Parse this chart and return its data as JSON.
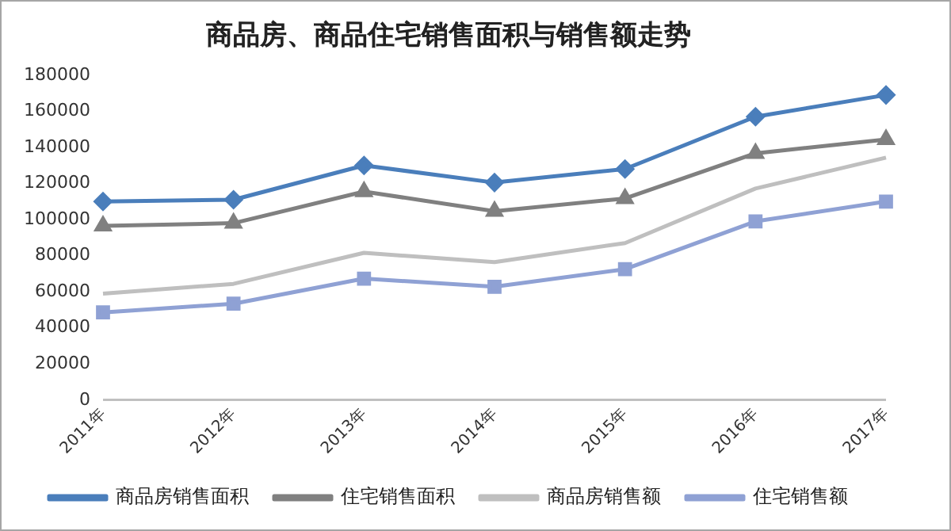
{
  "chart_data": {
    "type": "line",
    "title": "商品房、商品住宅销售面积与销售额走势",
    "categories": [
      "2011年",
      "2012年",
      "2013年",
      "2014年",
      "2015年",
      "2016年",
      "2017年"
    ],
    "series": [
      {
        "name": "商品房销售面积",
        "color": "#4a7ebb",
        "marker": "diamond",
        "values": [
          110000,
          111000,
          130000,
          120500,
          128000,
          157000,
          169000
        ]
      },
      {
        "name": "住宅销售面积",
        "color": "#808080",
        "marker": "triangle",
        "values": [
          96500,
          98000,
          115500,
          104600,
          111700,
          136700,
          144400
        ]
      },
      {
        "name": "商品房销售额",
        "color": "#bfbfbf",
        "marker": "none",
        "values": [
          59000,
          64400,
          81600,
          76400,
          87000,
          117200,
          134300
        ]
      },
      {
        "name": "住宅销售额",
        "color": "#8fa1d4",
        "marker": "square",
        "values": [
          48600,
          53400,
          67300,
          62800,
          72500,
          99000,
          110000
        ]
      }
    ],
    "ylim": [
      0,
      180000
    ],
    "yticks": [
      0,
      20000,
      40000,
      60000,
      80000,
      100000,
      120000,
      140000,
      160000,
      180000
    ],
    "grid": false,
    "legend": "bottom"
  }
}
